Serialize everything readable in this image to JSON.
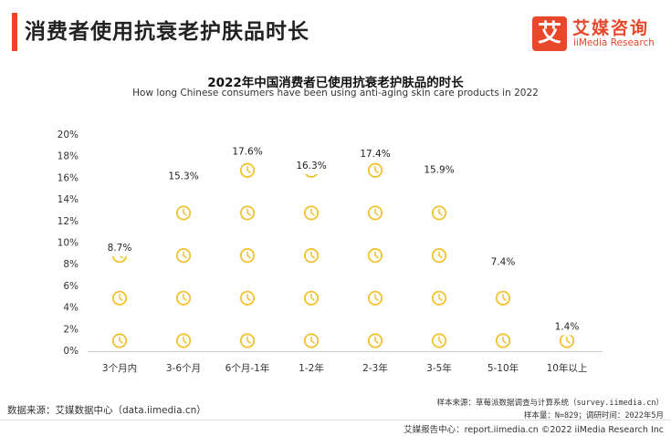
{
  "header": {
    "title": "消费者使用抗衰老护肤品时长"
  },
  "logo": {
    "mark": "艾",
    "name_cn": "艾媒咨询",
    "name_en": "iiMedia Research",
    "brand_color": "#e8472a"
  },
  "chart_data": {
    "type": "bar",
    "title": "2022年中国消费者已使用抗衰老护肤品的时长",
    "subtitle": "How long Chinese consumers have been using anti-aging skin care products in 2022",
    "categories": [
      "3个月内",
      "3-6个月",
      "6个月-1年",
      "1-2年",
      "2-3年",
      "3-5年",
      "5-10年",
      "10年以上"
    ],
    "values": [
      8.7,
      15.3,
      17.6,
      16.3,
      17.4,
      15.9,
      7.4,
      1.4
    ],
    "value_labels": [
      "8.7%",
      "15.3%",
      "17.6%",
      "16.3%",
      "17.4%",
      "15.9%",
      "7.4%",
      "1.4%"
    ],
    "y_ticks": [
      "0%",
      "2%",
      "4%",
      "6%",
      "8%",
      "10%",
      "12%",
      "14%",
      "16%",
      "18%",
      "20%"
    ],
    "ylim": [
      0,
      20
    ],
    "grid": false,
    "mark_icon": "clock-icon",
    "mark_color": "#f2c230"
  },
  "footer": {
    "source": "数据来源：艾媒数据中心（data.iimedia.cn）",
    "sample_source": "样本来源：草莓派数据调查与计算系统（survey.iimedia.cn）",
    "sample_info": "样本量：N=829；调研时间：2022年5月",
    "copyright": "艾媒报告中心：report.iimedia.cn  ©2022  iiMedia Research  Inc"
  }
}
